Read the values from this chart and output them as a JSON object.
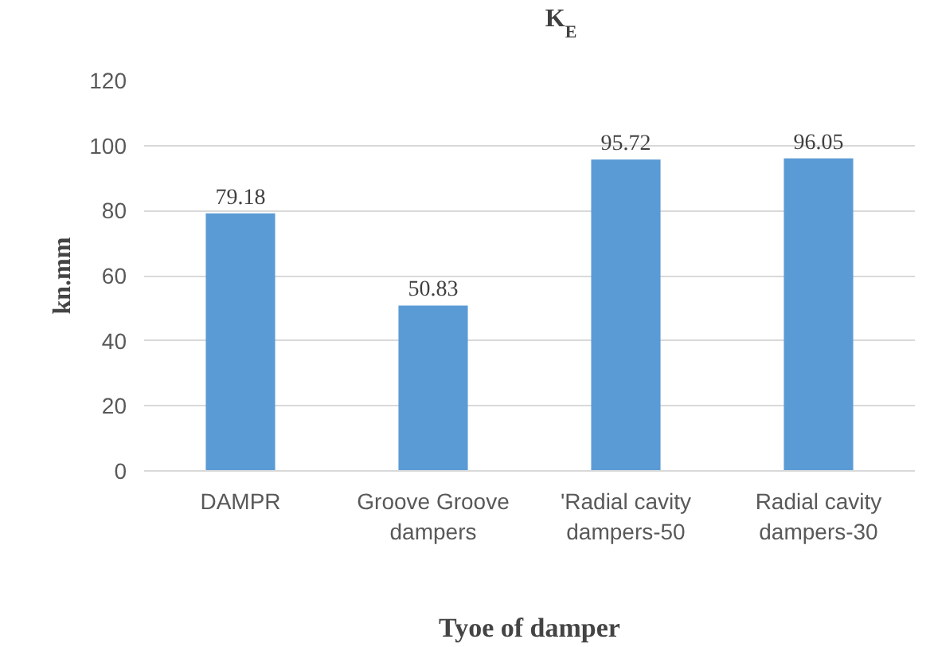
{
  "chart_data": {
    "type": "bar",
    "title": "K$_{E}$",
    "xlabel": "Tyoe of damper",
    "ylabel": "kn.mm",
    "categories": [
      "DAMPR",
      "Groove Groove dampers",
      "'Radial cavity dampers-50",
      "Radial cavity dampers-30"
    ],
    "values": [
      79.18,
      50.83,
      95.72,
      96.05
    ],
    "color": "#5b9bd5",
    "ylim": [
      0,
      120
    ],
    "yticks": [
      0,
      20,
      40,
      60,
      80,
      100,
      120
    ],
    "grid": "y",
    "data_labels": true
  }
}
